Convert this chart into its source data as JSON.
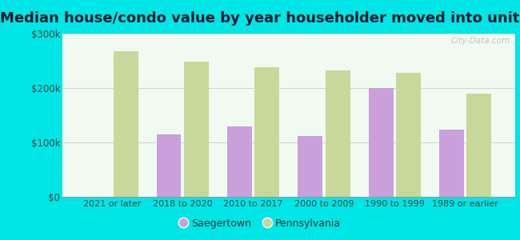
{
  "title": "Median house/condo value by year householder moved into unit",
  "categories": [
    "2021 or later",
    "2018 to 2020",
    "2010 to 2017",
    "2000 to 2009",
    "1990 to 1999",
    "1989 or earlier"
  ],
  "saegertown": [
    null,
    115000,
    130000,
    112000,
    200000,
    124000
  ],
  "pennsylvania": [
    268000,
    248000,
    238000,
    232000,
    228000,
    190000
  ],
  "saegertown_color": "#c9a0dc",
  "pennsylvania_color": "#c8d89a",
  "background_outer": "#00e5e5",
  "background_inner": "#e8f5e2",
  "ylim": [
    0,
    300000
  ],
  "yticks": [
    0,
    100000,
    200000,
    300000
  ],
  "ytick_labels": [
    "$0",
    "$100k",
    "$200k",
    "$300k"
  ],
  "watermark": "City-Data.com",
  "legend_saegertown": "Saegertown",
  "legend_pennsylvania": "Pennsylvania",
  "title_fontsize": 13,
  "bar_width": 0.35,
  "grid_color": "#bbbbbb"
}
